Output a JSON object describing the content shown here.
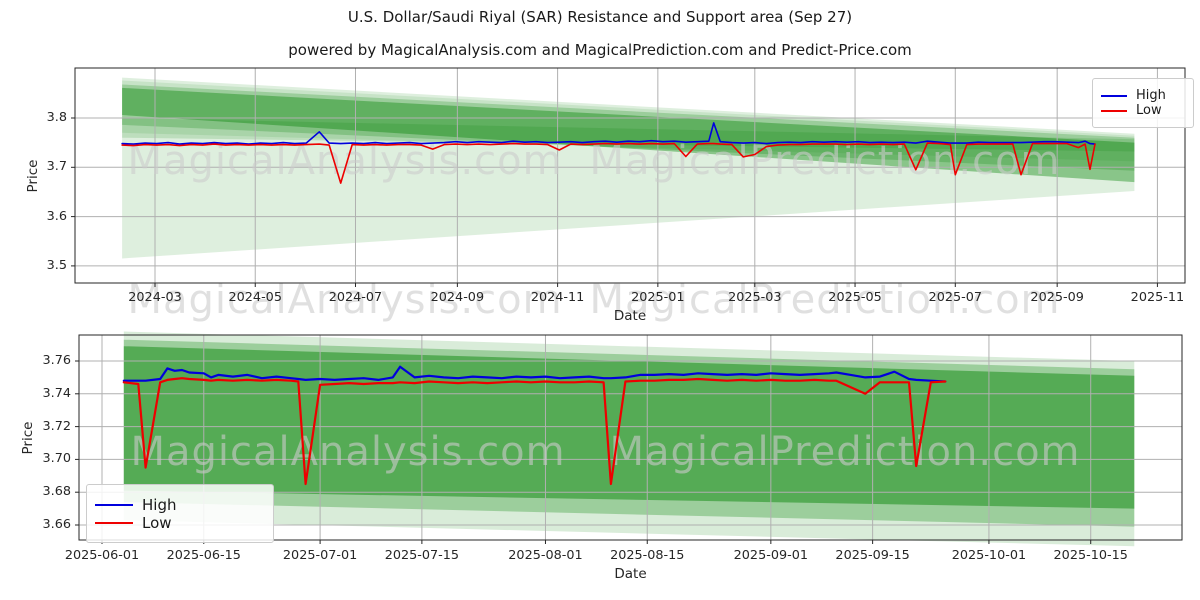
{
  "header": {
    "title": "U.S. Dollar/Saudi Riyal (SAR) Resistance and Support area (Sep 27)",
    "subtitle": "powered by MagicalAnalysis.com and MagicalPrediction.com and Predict-Price.com"
  },
  "watermarks": {
    "left": "MagicalAnalysis.com",
    "right": "MagicalPrediction.com"
  },
  "colors": {
    "high": "#0000dd",
    "low": "#ee0000",
    "band": "#008000",
    "grid": "#b0b0b0",
    "spine": "#262626",
    "text": "#262626"
  },
  "chart_data": [
    {
      "type": "line",
      "name": "full-history-panel",
      "xlabel": "Date",
      "ylabel": "Price",
      "xticks": [
        "2024-03",
        "2024-05",
        "2024-07",
        "2024-09",
        "2024-11",
        "2025-01",
        "2025-03",
        "2025-05",
        "2025-07",
        "2025-09",
        "2025-11"
      ],
      "yticks": [
        "3.5",
        "3.6",
        "3.7",
        "3.8"
      ],
      "xlim": [
        "2024-01-12",
        "2025-11-18"
      ],
      "ylim": [
        3.465,
        3.901
      ],
      "grid": true,
      "legend": {
        "location": "upper right",
        "entries": [
          "High",
          "Low"
        ]
      },
      "series": [
        {
          "name": "High",
          "color": "#0000dd"
        },
        {
          "name": "Low",
          "color": "#ee0000"
        }
      ],
      "columns": [
        "date",
        "high",
        "low"
      ],
      "rows": [
        [
          "2024-02-10",
          3.748,
          3.745
        ],
        [
          "2024-02-17",
          3.747,
          3.744
        ],
        [
          "2024-02-24",
          3.749,
          3.746
        ],
        [
          "2024-03-02",
          3.748,
          3.745
        ],
        [
          "2024-03-09",
          3.75,
          3.746
        ],
        [
          "2024-03-16",
          3.747,
          3.744
        ],
        [
          "2024-03-23",
          3.749,
          3.746
        ],
        [
          "2024-03-30",
          3.748,
          3.745
        ],
        [
          "2024-04-06",
          3.75,
          3.747
        ],
        [
          "2024-04-13",
          3.748,
          3.745
        ],
        [
          "2024-04-20",
          3.749,
          3.746
        ],
        [
          "2024-04-27",
          3.747,
          3.745
        ],
        [
          "2024-05-04",
          3.749,
          3.746
        ],
        [
          "2024-05-11",
          3.748,
          3.745
        ],
        [
          "2024-05-18",
          3.75,
          3.746
        ],
        [
          "2024-05-25",
          3.748,
          3.745
        ],
        [
          "2024-06-01",
          3.749,
          3.746
        ],
        [
          "2024-06-09",
          3.772,
          3.747
        ],
        [
          "2024-06-15",
          3.749,
          3.745
        ],
        [
          "2024-06-22",
          3.748,
          3.668
        ],
        [
          "2024-06-29",
          3.749,
          3.746
        ],
        [
          "2024-07-06",
          3.748,
          3.745
        ],
        [
          "2024-07-13",
          3.75,
          3.746
        ],
        [
          "2024-07-20",
          3.748,
          3.745
        ],
        [
          "2024-07-27",
          3.749,
          3.746
        ],
        [
          "2024-08-03",
          3.75,
          3.746
        ],
        [
          "2024-08-10",
          3.748,
          3.745
        ],
        [
          "2024-08-17",
          3.749,
          3.737
        ],
        [
          "2024-08-24",
          3.75,
          3.746
        ],
        [
          "2024-08-31",
          3.752,
          3.747
        ],
        [
          "2024-09-07",
          3.75,
          3.746
        ],
        [
          "2024-09-14",
          3.752,
          3.747
        ],
        [
          "2024-09-21",
          3.751,
          3.746
        ],
        [
          "2024-09-28",
          3.75,
          3.747
        ],
        [
          "2024-10-05",
          3.753,
          3.748
        ],
        [
          "2024-10-12",
          3.751,
          3.747
        ],
        [
          "2024-10-19",
          3.752,
          3.747
        ],
        [
          "2024-10-26",
          3.75,
          3.746
        ],
        [
          "2024-11-02",
          3.751,
          3.735
        ],
        [
          "2024-11-09",
          3.752,
          3.747
        ],
        [
          "2024-11-16",
          3.75,
          3.746
        ],
        [
          "2024-11-23",
          3.752,
          3.747
        ],
        [
          "2024-11-30",
          3.753,
          3.748
        ],
        [
          "2024-12-07",
          3.751,
          3.747
        ],
        [
          "2024-12-14",
          3.753,
          3.748
        ],
        [
          "2024-12-21",
          3.752,
          3.747
        ],
        [
          "2024-12-28",
          3.754,
          3.748
        ],
        [
          "2025-01-04",
          3.752,
          3.747
        ],
        [
          "2025-01-11",
          3.753,
          3.748
        ],
        [
          "2025-01-18",
          3.751,
          3.722
        ],
        [
          "2025-01-25",
          3.752,
          3.747
        ],
        [
          "2025-02-01",
          3.753,
          3.748
        ],
        [
          "2025-02-04",
          3.79,
          3.748
        ],
        [
          "2025-02-08",
          3.752,
          3.747
        ],
        [
          "2025-02-15",
          3.75,
          3.746
        ],
        [
          "2025-02-22",
          3.749,
          3.721
        ],
        [
          "2025-03-01",
          3.75,
          3.726
        ],
        [
          "2025-03-08",
          3.748,
          3.742
        ],
        [
          "2025-03-15",
          3.75,
          3.745
        ],
        [
          "2025-03-22",
          3.751,
          3.746
        ],
        [
          "2025-03-29",
          3.75,
          3.746
        ],
        [
          "2025-04-05",
          3.752,
          3.747
        ],
        [
          "2025-04-12",
          3.751,
          3.747
        ],
        [
          "2025-04-19",
          3.752,
          3.747
        ],
        [
          "2025-04-26",
          3.751,
          3.746
        ],
        [
          "2025-05-03",
          3.752,
          3.747
        ],
        [
          "2025-05-10",
          3.75,
          3.746
        ],
        [
          "2025-05-17",
          3.751,
          3.747
        ],
        [
          "2025-05-24",
          3.75,
          3.746
        ],
        [
          "2025-05-31",
          3.751,
          3.747
        ],
        [
          "2025-06-07",
          3.749,
          3.695
        ],
        [
          "2025-06-14",
          3.753,
          3.749
        ],
        [
          "2025-06-21",
          3.751,
          3.748
        ],
        [
          "2025-06-28",
          3.749,
          3.746
        ],
        [
          "2025-07-01",
          3.749,
          3.685
        ],
        [
          "2025-07-08",
          3.749,
          3.746
        ],
        [
          "2025-07-15",
          3.751,
          3.747
        ],
        [
          "2025-07-22",
          3.75,
          3.747
        ],
        [
          "2025-07-29",
          3.75,
          3.747
        ],
        [
          "2025-08-05",
          3.75,
          3.747
        ],
        [
          "2025-08-10",
          3.75,
          3.685
        ],
        [
          "2025-08-17",
          3.751,
          3.748
        ],
        [
          "2025-08-24",
          3.752,
          3.748
        ],
        [
          "2025-08-31",
          3.752,
          3.748
        ],
        [
          "2025-09-07",
          3.751,
          3.748
        ],
        [
          "2025-09-14",
          3.75,
          3.74
        ],
        [
          "2025-09-18",
          3.753,
          3.747
        ],
        [
          "2025-09-21",
          3.748,
          3.696
        ],
        [
          "2025-09-24",
          3.747,
          3.747
        ]
      ],
      "bands": [
        {
          "start": "2024-02-10",
          "end": "2025-10-18",
          "left": [
            3.515,
            3.882
          ],
          "right": [
            3.652,
            3.768
          ],
          "alpha": 0.13
        },
        {
          "start": "2024-02-10",
          "end": "2025-10-18",
          "left": [
            3.77,
            3.876
          ],
          "right": [
            3.712,
            3.764
          ],
          "alpha": 0.1
        },
        {
          "start": "2024-02-10",
          "end": "2025-10-18",
          "left": [
            3.786,
            3.868
          ],
          "right": [
            3.693,
            3.76
          ],
          "alpha": 0.22
        },
        {
          "start": "2024-02-10",
          "end": "2025-10-18",
          "left": [
            3.806,
            3.861
          ],
          "right": [
            3.67,
            3.75
          ],
          "alpha": 0.38
        },
        {
          "start": "2024-02-10",
          "end": "2025-10-18",
          "left": [
            3.76,
            3.8
          ],
          "right": [
            3.732,
            3.757
          ],
          "alpha": 0.15
        }
      ]
    },
    {
      "type": "line",
      "name": "recent-zoom-panel",
      "xlabel": "Date",
      "ylabel": "Price",
      "xticks": [
        "2025-06-01",
        "2025-06-15",
        "2025-07-01",
        "2025-07-15",
        "2025-08-01",
        "2025-08-15",
        "2025-09-01",
        "2025-09-15",
        "2025-10-01",
        "2025-10-15"
      ],
      "yticks": [
        "3.66",
        "3.68",
        "3.70",
        "3.72",
        "3.74",
        "3.76"
      ],
      "xlim": [
        "2025-05-28",
        "2025-10-27"
      ],
      "ylim": [
        3.651,
        3.776
      ],
      "grid": true,
      "legend": {
        "location": "lower left",
        "entries": [
          "High",
          "Low"
        ]
      },
      "series": [
        {
          "name": "High",
          "color": "#0000dd"
        },
        {
          "name": "Low",
          "color": "#ee0000"
        }
      ],
      "columns": [
        "date",
        "high",
        "low"
      ],
      "rows": [
        [
          "2025-06-04",
          3.748,
          3.747
        ],
        [
          "2025-06-06",
          3.748,
          3.746
        ],
        [
          "2025-06-07",
          3.748,
          3.695
        ],
        [
          "2025-06-09",
          3.749,
          3.747
        ],
        [
          "2025-06-10",
          3.7555,
          3.7485
        ],
        [
          "2025-06-11",
          3.754,
          3.749
        ],
        [
          "2025-06-12",
          3.7545,
          3.7495
        ],
        [
          "2025-06-13",
          3.753,
          3.749
        ],
        [
          "2025-06-15",
          3.7525,
          3.7485
        ],
        [
          "2025-06-16",
          3.75,
          3.748
        ],
        [
          "2025-06-17",
          3.7515,
          3.7485
        ],
        [
          "2025-06-19",
          3.7505,
          3.748
        ],
        [
          "2025-06-21",
          3.7515,
          3.7485
        ],
        [
          "2025-06-23",
          3.7495,
          3.748
        ],
        [
          "2025-06-25",
          3.7505,
          3.7485
        ],
        [
          "2025-06-27",
          3.7495,
          3.748
        ],
        [
          "2025-06-28",
          3.749,
          3.7475
        ],
        [
          "2025-06-29",
          3.7485,
          3.685
        ],
        [
          "2025-07-01",
          3.749,
          3.7455
        ],
        [
          "2025-07-03",
          3.7485,
          3.746
        ],
        [
          "2025-07-05",
          3.749,
          3.7465
        ],
        [
          "2025-07-07",
          3.7495,
          3.746
        ],
        [
          "2025-07-09",
          3.7485,
          3.7465
        ],
        [
          "2025-07-11",
          3.75,
          3.7465
        ],
        [
          "2025-07-12",
          3.7565,
          3.747
        ],
        [
          "2025-07-14",
          3.75,
          3.7465
        ],
        [
          "2025-07-16",
          3.751,
          3.7475
        ],
        [
          "2025-07-18",
          3.75,
          3.747
        ],
        [
          "2025-07-20",
          3.7495,
          3.7465
        ],
        [
          "2025-07-22",
          3.7505,
          3.747
        ],
        [
          "2025-07-24",
          3.75,
          3.7465
        ],
        [
          "2025-07-26",
          3.7495,
          3.747
        ],
        [
          "2025-07-28",
          3.7505,
          3.7475
        ],
        [
          "2025-07-30",
          3.75,
          3.747
        ],
        [
          "2025-08-01",
          3.7505,
          3.7475
        ],
        [
          "2025-08-03",
          3.7495,
          3.747
        ],
        [
          "2025-08-05",
          3.75,
          3.747
        ],
        [
          "2025-08-07",
          3.7505,
          3.7475
        ],
        [
          "2025-08-09",
          3.7495,
          3.747
        ],
        [
          "2025-08-10",
          3.7495,
          3.685
        ],
        [
          "2025-08-12",
          3.75,
          3.7475
        ],
        [
          "2025-08-14",
          3.7515,
          3.748
        ],
        [
          "2025-08-16",
          3.7515,
          3.748
        ],
        [
          "2025-08-18",
          3.752,
          3.7485
        ],
        [
          "2025-08-20",
          3.7515,
          3.7485
        ],
        [
          "2025-08-22",
          3.7525,
          3.749
        ],
        [
          "2025-08-24",
          3.752,
          3.7485
        ],
        [
          "2025-08-26",
          3.7515,
          3.748
        ],
        [
          "2025-08-28",
          3.752,
          3.7485
        ],
        [
          "2025-08-30",
          3.7515,
          3.748
        ],
        [
          "2025-09-01",
          3.7525,
          3.7485
        ],
        [
          "2025-09-03",
          3.752,
          3.748
        ],
        [
          "2025-09-05",
          3.7515,
          3.748
        ],
        [
          "2025-09-07",
          3.752,
          3.7485
        ],
        [
          "2025-09-09",
          3.7525,
          3.748
        ],
        [
          "2025-09-10",
          3.753,
          3.748
        ],
        [
          "2025-09-12",
          3.7515,
          3.744
        ],
        [
          "2025-09-14",
          3.75,
          3.74
        ],
        [
          "2025-09-16",
          3.7505,
          3.747
        ],
        [
          "2025-09-18",
          3.7535,
          3.747
        ],
        [
          "2025-09-20",
          3.749,
          3.747
        ],
        [
          "2025-09-21",
          3.7485,
          3.696
        ],
        [
          "2025-09-23",
          3.748,
          3.747
        ],
        [
          "2025-09-25",
          3.7475,
          3.7475
        ]
      ],
      "bands": [
        {
          "start": "2025-06-04",
          "end": "2025-10-21",
          "left": [
            3.663,
            3.778
          ],
          "right": [
            3.647,
            3.76
          ],
          "alpha": 0.15
        },
        {
          "start": "2025-06-04",
          "end": "2025-10-21",
          "left": [
            3.674,
            3.773
          ],
          "right": [
            3.659,
            3.755
          ],
          "alpha": 0.28
        },
        {
          "start": "2025-06-04",
          "end": "2025-10-21",
          "left": [
            3.681,
            3.769
          ],
          "right": [
            3.67,
            3.751
          ],
          "alpha": 0.45
        }
      ]
    }
  ]
}
